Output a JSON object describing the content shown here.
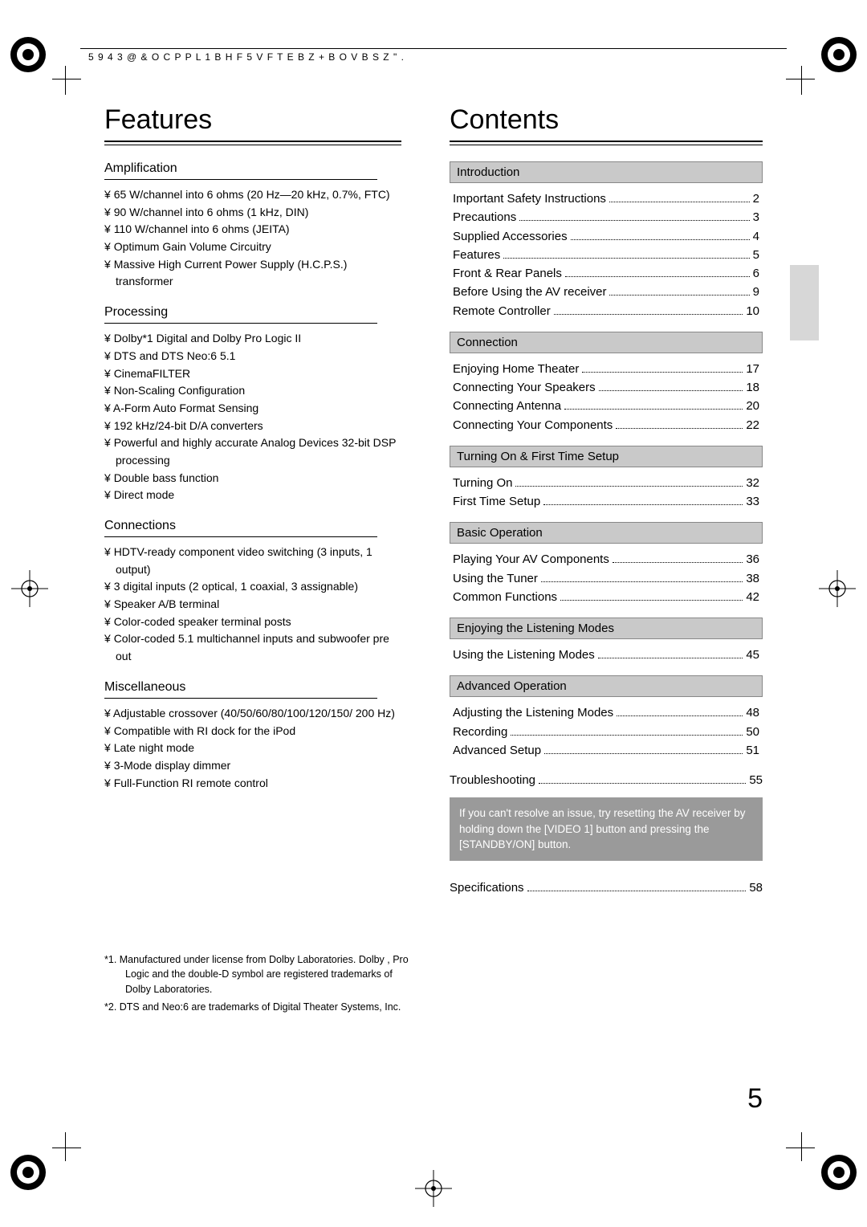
{
  "header_code": "5 9  4 3    @ & O  C P P L  1 B H F    5 V F T E B Z   + B O V B S Z                              \" .",
  "features": {
    "title": "Features",
    "amplification": {
      "heading": "Ampliﬁcation",
      "items": [
        "65 W/channel into 6 ohms (20 Hz—20 kHz, 0.7%, FTC)",
        "90 W/channel into 6 ohms (1 kHz, DIN)",
        "110 W/channel into 6 ohms (JEITA)",
        "Optimum Gain Volume Circuitry",
        "Massive High Current Power Supply (H.C.P.S.) transformer"
      ]
    },
    "processing": {
      "heading": "Processing",
      "items": [
        "Dolby*1 Digital and Dolby Pro Logic II",
        "DTS and DTS Neo:6 5.1",
        "CinemaFILTER",
        "Non-Scaling Conﬁguration",
        "A-Form  Auto Format Sensing",
        "192 kHz/24-bit D/A converters",
        "Powerful and highly accurate Analog Devices 32-bit DSP processing",
        "Double bass function",
        "Direct mode"
      ]
    },
    "connections": {
      "heading": "Connections",
      "items": [
        "HDTV-ready component video switching (3 inputs, 1 output)",
        "3 digital inputs (2 optical, 1 coaxial, 3 assignable)",
        "Speaker A/B terminal",
        "Color-coded speaker terminal posts",
        "Color-coded 5.1 multichannel inputs and subwoofer pre out"
      ]
    },
    "misc": {
      "heading": "Miscellaneous",
      "items": [
        "Adjustable crossover (40/50/60/80/100/120/150/ 200 Hz)",
        "Compatible with RI dock for the iPod",
        "Late night mode",
        "3-Mode display dimmer",
        "Full-Function RI remote control"
      ]
    }
  },
  "contents": {
    "title": "Contents",
    "sections": [
      {
        "heading": "Introduction",
        "rows": [
          {
            "label": "Important Safety Instructions",
            "page": "2"
          },
          {
            "label": "Precautions",
            "page": "3"
          },
          {
            "label": "Supplied Accessories",
            "page": "4"
          },
          {
            "label": "Features",
            "page": "5"
          },
          {
            "label": "Front & Rear Panels",
            "page": "6"
          },
          {
            "label": "Before Using the AV receiver",
            "page": "9"
          },
          {
            "label": "Remote Controller",
            "page": "10"
          }
        ]
      },
      {
        "heading": "Connection",
        "rows": [
          {
            "label": "Enjoying Home Theater",
            "page": "17"
          },
          {
            "label": "Connecting Your Speakers",
            "page": "18"
          },
          {
            "label": "Connecting Antenna",
            "page": "20"
          },
          {
            "label": "Connecting Your Components",
            "page": "22"
          }
        ]
      },
      {
        "heading": "Turning On & First Time Setup",
        "rows": [
          {
            "label": "Turning On",
            "page": "32"
          },
          {
            "label": "First Time Setup",
            "page": "33"
          }
        ]
      },
      {
        "heading": "Basic Operation",
        "rows": [
          {
            "label": "Playing Your AV Components",
            "page": "36"
          },
          {
            "label": "Using the Tuner",
            "page": "38"
          },
          {
            "label": "Common Functions",
            "page": "42"
          }
        ]
      },
      {
        "heading": "Enjoying the Listening Modes",
        "rows": [
          {
            "label": "Using the Listening Modes",
            "page": "45"
          }
        ]
      },
      {
        "heading": "Advanced Operation",
        "rows": [
          {
            "label": "Adjusting the Listening Modes",
            "page": "48"
          },
          {
            "label": "Recording",
            "page": "50"
          },
          {
            "label": "Advanced Setup",
            "page": "51"
          }
        ]
      }
    ],
    "troubleshooting": {
      "label": "Troubleshooting",
      "page": "55"
    },
    "specifications": {
      "label": "Specifications",
      "page": "58"
    },
    "note": "If you can't resolve an issue, try resetting the AV receiver by holding down the [VIDEO 1] button and pressing the [STANDBY/ON] button."
  },
  "footnotes": [
    "*1.  Manufactured under license from Dolby Laboratories. Dolby , Pro Logic and the double-D symbol are registered trademarks of Dolby Laboratories.",
    "*2.  DTS and Neo:6 are trademarks of Digital Theater Systems, Inc."
  ],
  "page_number": "5"
}
